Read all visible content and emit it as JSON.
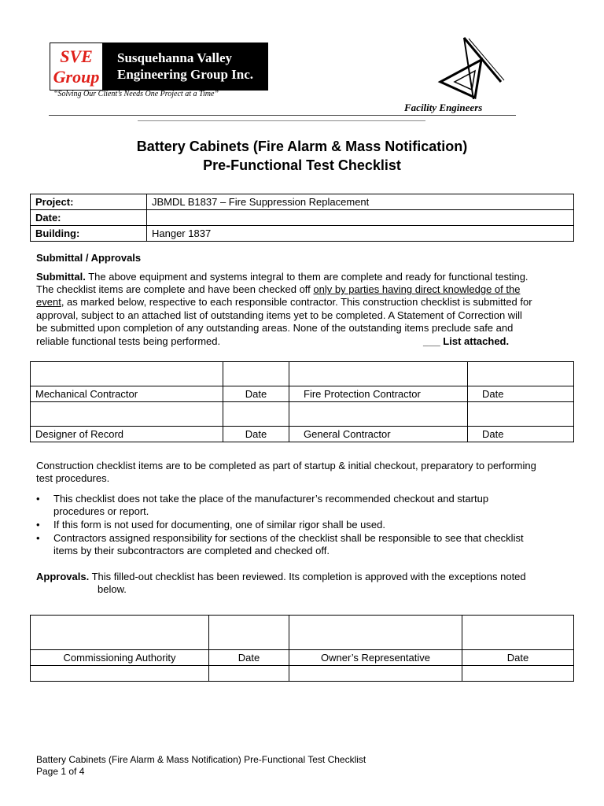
{
  "header": {
    "logo_abbr_1": "SVE",
    "logo_abbr_2": "Group",
    "company_line_1": "Susquehanna Valley",
    "company_line_2": "Engineering Group Inc.",
    "tagline": "“Solving Our Client’s Needs One Project at a Time”",
    "division": "Facility Engineers",
    "emblem": "drafting-tools-icon"
  },
  "title": {
    "line1": "Battery Cabinets (Fire Alarm & Mass Notification)",
    "line2": "Pre-Functional Test Checklist"
  },
  "info_table": [
    {
      "label": "Project:",
      "value": "JBMDL B1837 – Fire Suppression Replacement"
    },
    {
      "label": "Date:",
      "value": ""
    },
    {
      "label": "Building:",
      "value": "Hanger 1837"
    }
  ],
  "section_heading": "Submittal / Approvals",
  "submittal": {
    "lead": "Submittal.",
    "line1_rest": "  The above equipment and systems integral to them are complete and ready for functional testing.",
    "line2_a": "The checklist items are complete and have been checked off ",
    "line2_u": "only by parties having direct knowledge of the ",
    "line3_u": "event",
    "line3_rest": ", as marked below, respective to each responsible contractor.  This construction checklist is submitted for",
    "line4": "approval, subject to an attached list of outstanding items yet to be completed.  A Statement of Correction will",
    "line5": "be submitted upon completion of any outstanding areas.  None of the outstanding items preclude safe and",
    "line6": "reliable functional tests being performed.",
    "list_attached": "___ List attached."
  },
  "signatures_1": {
    "row1": [
      "Mechanical Contractor",
      "Date",
      "Fire Protection Contractor",
      "Date"
    ],
    "row2": [
      "Designer of Record",
      "Date",
      "General Contractor",
      "Date"
    ]
  },
  "construction_note": {
    "line1": "Construction checklist items are to be completed as part of startup & initial checkout, preparatory to performing",
    "line2": "test procedures."
  },
  "bullets": [
    {
      "lines": [
        "This checklist does not take the place of the manufacturer’s recommended checkout and startup",
        "procedures or report."
      ]
    },
    {
      "lines": [
        "If this form is not used for documenting, one of similar rigor shall be used."
      ]
    },
    {
      "lines": [
        "Contractors assigned responsibility for sections of the checklist shall be responsible to see that checklist",
        "items by their subcontractors are completed and checked off."
      ]
    }
  ],
  "approvals": {
    "lead": "Approvals.",
    "line1": "  This filled-out checklist has been reviewed.  Its completion is approved with the exceptions noted",
    "line2": "below."
  },
  "signatures_2": {
    "row1": [
      "Commissioning Authority",
      "Date",
      "Owner’s Representative",
      "Date"
    ]
  },
  "footer": {
    "line1": "Battery Cabinets (Fire Alarm  & Mass Notification) Pre-Functional Test Checklist",
    "line2": "Page 1 of 4"
  }
}
